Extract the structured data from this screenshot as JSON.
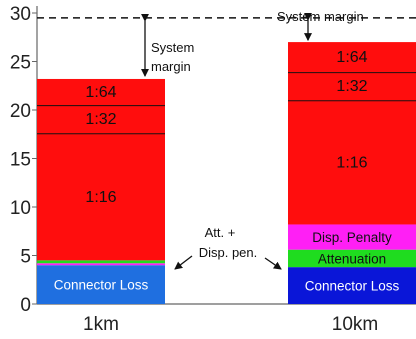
{
  "chart_data": {
    "type": "bar",
    "stacked": true,
    "categories": [
      "1km",
      "10km"
    ],
    "yticks": [
      "0",
      "5",
      "10",
      "15",
      "20",
      "25",
      "30"
    ],
    "ylim": [
      0,
      31
    ],
    "grid": false,
    "reference_line": {
      "value": 29.5,
      "style": "dashed"
    },
    "colors": {
      "connector": "#1f6fe0",
      "connector_10km": "#0a16d8",
      "attenuation": "#1fdc1f",
      "disp_penalty": "#ff1ff5",
      "split": "#ff0d0d"
    },
    "bars": [
      {
        "category": "1km",
        "segments": [
          {
            "name": "Connector Loss",
            "from": 0,
            "to": 4.0,
            "color_key": "connector",
            "label": "Connector Loss",
            "label_class": "seg-label-white"
          },
          {
            "name": "Disp. Penalty",
            "from": 4.0,
            "to": 4.2,
            "color_key": "disp_penalty",
            "label": "",
            "label_class": ""
          },
          {
            "name": "Attenuation",
            "from": 4.2,
            "to": 4.5,
            "color_key": "attenuation",
            "label": "",
            "label_class": ""
          },
          {
            "name": "1:16",
            "from": 4.5,
            "to": 17.6,
            "color_key": "split",
            "label": "1:16",
            "label_class": "seg-label"
          },
          {
            "name": "1:32",
            "from": 17.6,
            "to": 20.5,
            "color_key": "split",
            "label": "1:32",
            "label_class": "seg-label"
          },
          {
            "name": "1:64",
            "from": 20.5,
            "to": 23.2,
            "color_key": "split",
            "label": "1:64",
            "label_class": "seg-label"
          }
        ]
      },
      {
        "category": "10km",
        "segments": [
          {
            "name": "Connector Loss",
            "from": 0,
            "to": 3.8,
            "color_key": "connector_10km",
            "label": "Connector Loss",
            "label_class": "seg-label-white"
          },
          {
            "name": "Attenuation",
            "from": 3.8,
            "to": 5.6,
            "color_key": "attenuation",
            "label": "Attenuation",
            "label_class": "seg-label-sm"
          },
          {
            "name": "Disp. Penalty",
            "from": 5.6,
            "to": 8.2,
            "color_key": "disp_penalty",
            "label": "Disp. Penalty",
            "label_class": "seg-label-sm"
          },
          {
            "name": "1:16",
            "from": 8.2,
            "to": 21.0,
            "color_key": "split",
            "label": "1:16",
            "label_class": "seg-label"
          },
          {
            "name": "1:32",
            "from": 21.0,
            "to": 23.9,
            "color_key": "split",
            "label": "1:32",
            "label_class": "seg-label"
          },
          {
            "name": "1:64",
            "from": 23.9,
            "to": 27.0,
            "color_key": "split",
            "label": "1:64",
            "label_class": "seg-label"
          }
        ]
      }
    ],
    "annotations": {
      "system_margin_1": [
        "System",
        "margin"
      ],
      "system_margin_2": "System margin",
      "att_disp": [
        "Att. +",
        "Disp. pen."
      ]
    }
  }
}
